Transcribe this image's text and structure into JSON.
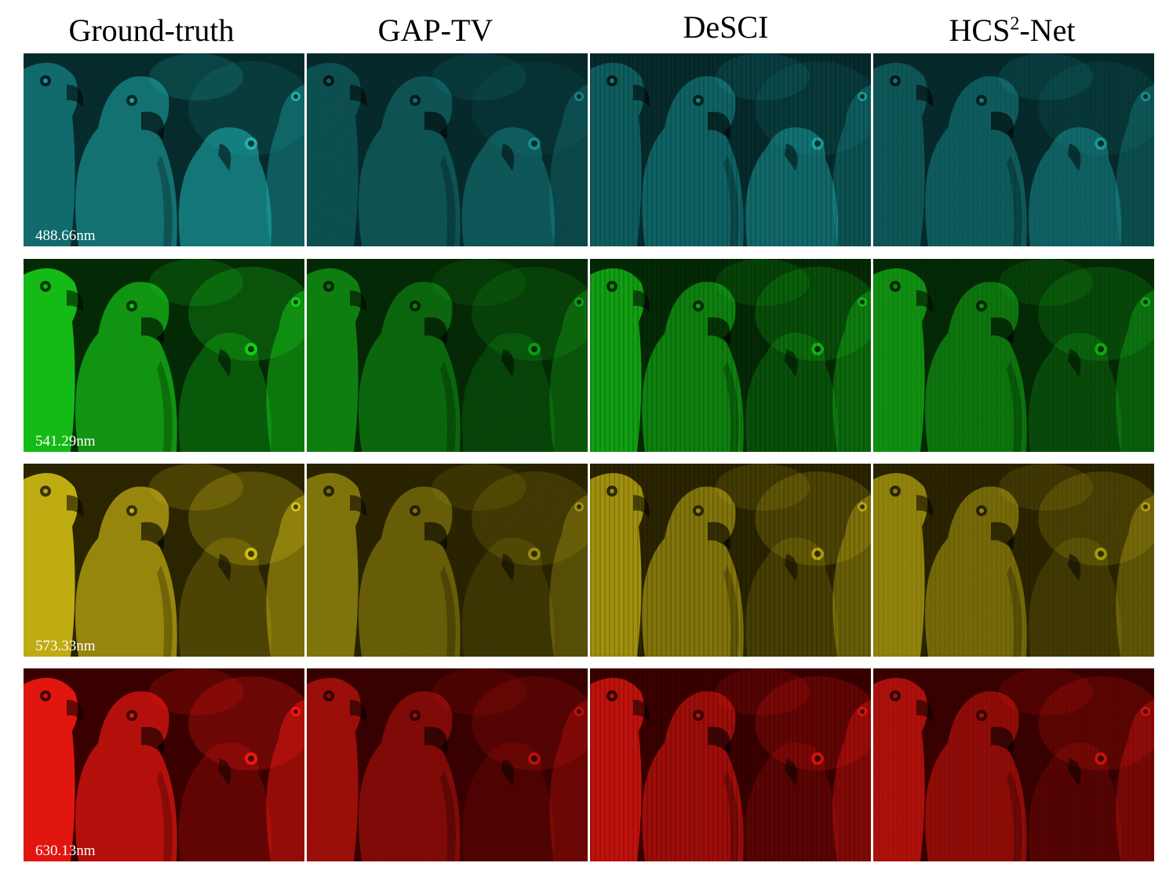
{
  "columns": [
    {
      "label": "Ground-truth"
    },
    {
      "label": "GAP-TV"
    },
    {
      "label": "DeSCI"
    },
    {
      "label_main": "HCS",
      "label_sup": "2",
      "label_tail": "-Net"
    }
  ],
  "rows": [
    {
      "wavelength": "488.66nm",
      "color": "#1fb7b7",
      "bg": "#062b2d"
    },
    {
      "wavelength": "541.29nm",
      "color": "#18d51a",
      "bg": "#042a05"
    },
    {
      "wavelength": "573.33nm",
      "color": "#d8c415",
      "bg": "#2a2400"
    },
    {
      "wavelength": "630.13nm",
      "color": "#ff1a12",
      "bg": "#3a0000"
    }
  ],
  "methods": [
    "ground-truth",
    "gap-tv",
    "desci",
    "hcs2-net"
  ]
}
